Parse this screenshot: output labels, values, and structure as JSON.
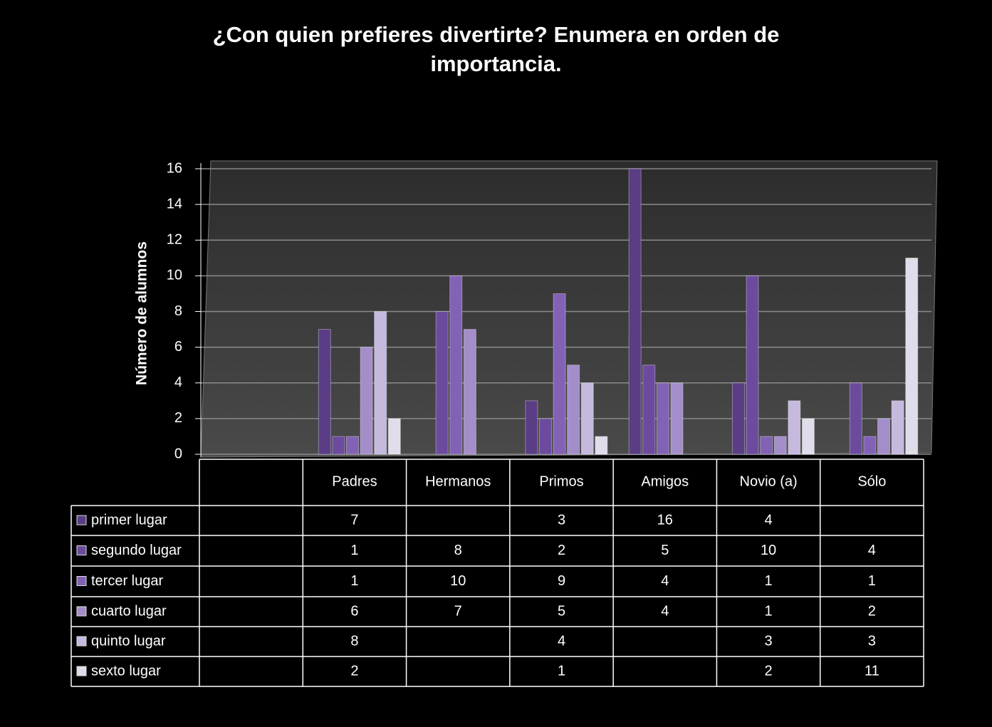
{
  "chart_data": {
    "type": "bar",
    "title": "¿Con quien prefieres divertirte? Enumera en orden de importancia.",
    "y_label": "Número de alumnos",
    "categories": [
      null,
      "Padres",
      "Hermanos",
      "Primos",
      "Amigos",
      "Novio (a)",
      "Sólo"
    ],
    "series": [
      {
        "name": "primer lugar",
        "color": "#5a3d85",
        "values": [
          null,
          7,
          null,
          3,
          16,
          4,
          null
        ]
      },
      {
        "name": "segundo lugar",
        "color": "#6c4b9e",
        "values": [
          null,
          1,
          8,
          2,
          5,
          10,
          4
        ]
      },
      {
        "name": "tercer lugar",
        "color": "#8262b5",
        "values": [
          null,
          1,
          10,
          9,
          4,
          1,
          1
        ]
      },
      {
        "name": "cuarto lugar",
        "color": "#a48ec9",
        "values": [
          null,
          6,
          7,
          5,
          4,
          1,
          2
        ]
      },
      {
        "name": "quinto lugar",
        "color": "#c6b9de",
        "values": [
          null,
          8,
          null,
          4,
          null,
          3,
          3
        ]
      },
      {
        "name": "sexto lugar",
        "color": "#e0dcea",
        "values": [
          null,
          2,
          null,
          1,
          null,
          2,
          11
        ]
      }
    ],
    "ylim": [
      0,
      16
    ],
    "yticks": [
      0,
      2,
      4,
      6,
      8,
      10,
      12,
      14,
      16
    ],
    "grid": true
  }
}
